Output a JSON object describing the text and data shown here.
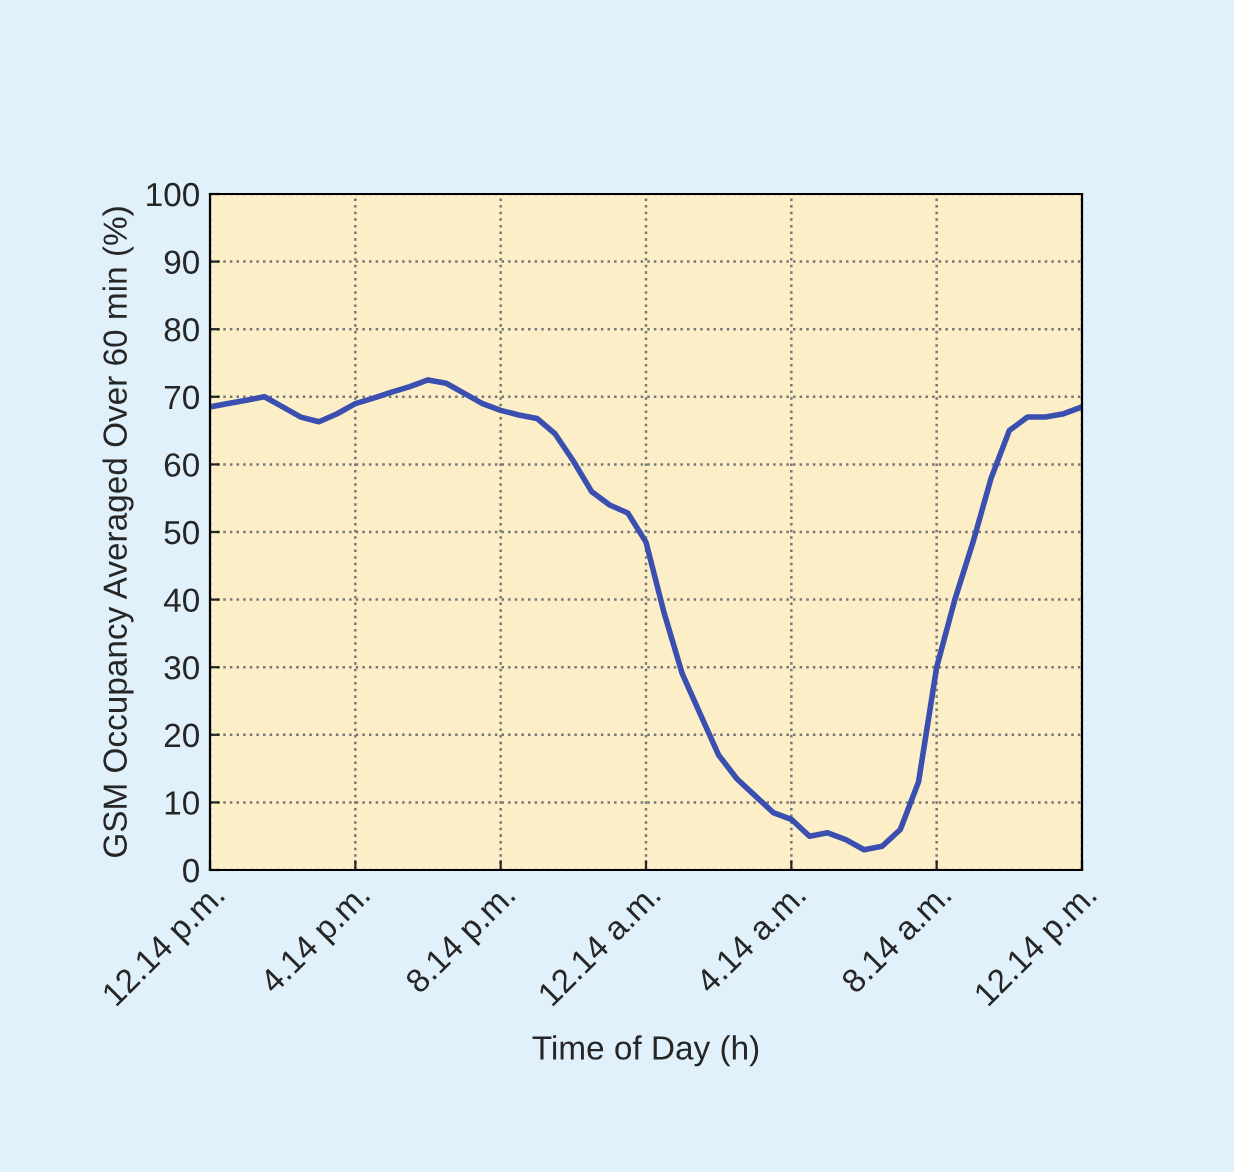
{
  "chart_data": {
    "type": "line",
    "xlabel": "Time of Day (h)",
    "ylabel": "GSM Occupancy Averaged Over 60 min (%)",
    "categories": [
      "12.14 p.m.",
      null,
      null,
      null,
      null,
      null,
      null,
      null,
      "4.14 p.m.",
      null,
      null,
      null,
      null,
      null,
      null,
      null,
      "8.14 p.m.",
      null,
      null,
      null,
      null,
      null,
      null,
      null,
      "12.14 a.m.",
      null,
      null,
      null,
      null,
      null,
      null,
      null,
      "4.14 a.m.",
      null,
      null,
      null,
      null,
      null,
      null,
      null,
      "8.14 a.m.",
      null,
      null,
      null,
      null,
      null,
      null,
      null,
      "12.14 p.m."
    ],
    "series": [
      {
        "color": "#3a4fb0",
        "values": [
          68.5,
          69,
          69.5,
          70,
          68.5,
          67,
          66.3,
          67.5,
          69,
          69.8,
          70.7,
          71.5,
          72.5,
          72,
          70.5,
          69,
          68,
          67.3,
          66.8,
          64.5,
          60.5,
          56,
          54,
          52.8,
          48.5,
          38,
          29,
          23,
          17,
          13.5,
          11,
          8.5,
          7.5,
          5,
          5.5,
          4.5,
          3,
          3.5,
          6,
          13,
          30,
          40,
          48.5,
          58,
          65,
          67,
          67,
          67.5,
          68.5
        ]
      }
    ],
    "ylim": [
      0,
      100
    ],
    "yticks": [
      0,
      10,
      20,
      30,
      40,
      50,
      60,
      70,
      80,
      90,
      100
    ],
    "grid": true,
    "marker": "none",
    "line_style": "solid"
  }
}
